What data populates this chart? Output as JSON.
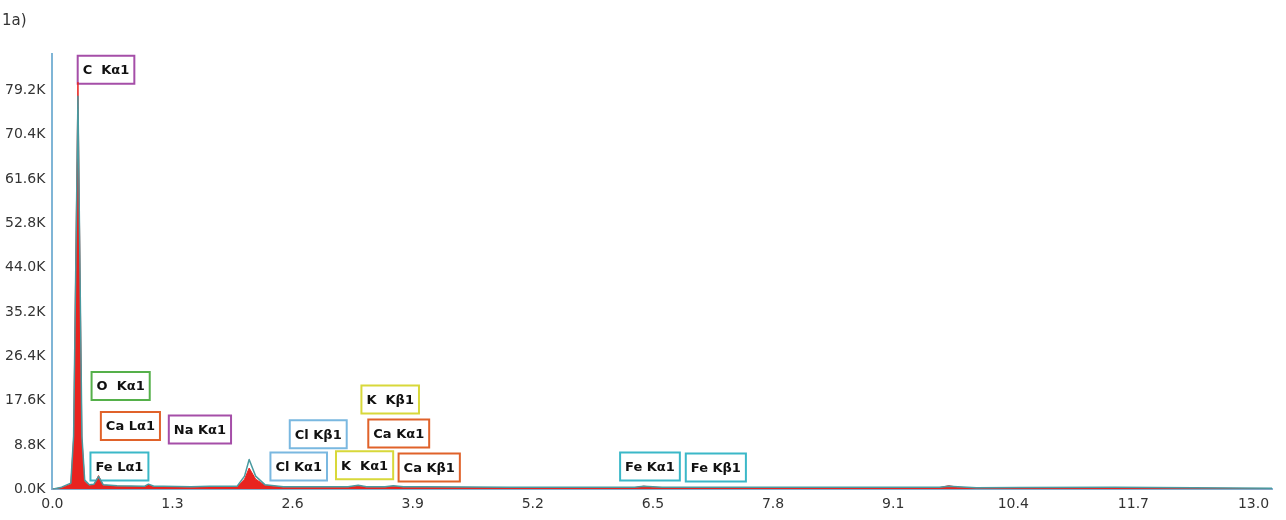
{
  "chart_data": {
    "type": "area",
    "title": "1a)",
    "xlim": [
      0,
      13.2
    ],
    "ylim": [
      0,
      86400
    ],
    "xticks": [
      {
        "value": 0,
        "label": "0.0"
      },
      1.3,
      2.6,
      3.9,
      5.2,
      6.5,
      7.8,
      9.1,
      10.4,
      11.7,
      {
        "value": 13,
        "label": "13.0"
      }
    ],
    "yticks": [
      {
        "value": 0,
        "label": "0.0K"
      },
      {
        "value": 8800,
        "label": "8.8K"
      },
      {
        "value": 17600,
        "label": "17.6K"
      },
      {
        "value": 26400,
        "label": "26.4K"
      },
      {
        "value": 35200,
        "label": "35.2K"
      },
      {
        "value": 44000,
        "label": "44.0K"
      },
      {
        "value": 52800,
        "label": "52.8K"
      },
      {
        "value": 61600,
        "label": "61.6K"
      },
      {
        "value": 70400,
        "label": "70.4K"
      },
      {
        "value": 79200,
        "label": "79.2K"
      }
    ],
    "grid": false,
    "legend": false,
    "series": [
      {
        "color": "#e8231f",
        "x": [
          0,
          0.1,
          0.2,
          0.23,
          0.277,
          0.32,
          0.35,
          0.4,
          0.45,
          0.5,
          0.55,
          0.7,
          1.0,
          1.04,
          1.1,
          1.2,
          1.5,
          1.7,
          2.0,
          2.08,
          2.13,
          2.2,
          2.3,
          2.5,
          3.2,
          3.31,
          3.4,
          3.6,
          3.69,
          3.8,
          4.0,
          5.0,
          6.3,
          6.4,
          6.5,
          6.6,
          9.6,
          9.7,
          9.8,
          10.0,
          11.5,
          13.2
        ],
        "values": [
          0,
          300,
          1000,
          10000,
          80800,
          10000,
          1500,
          800,
          900,
          2700,
          800,
          600,
          500,
          900,
          500,
          500,
          400,
          500,
          500,
          2000,
          4200,
          2000,
          800,
          400,
          400,
          700,
          400,
          400,
          600,
          400,
          400,
          300,
          300,
          600,
          400,
          300,
          300,
          700,
          400,
          200,
          300,
          100
        ]
      },
      {
        "type": "line",
        "color": "#4a9aa0",
        "x": [
          0,
          0.1,
          0.2,
          0.23,
          0.277,
          0.32,
          0.35,
          0.4,
          0.45,
          0.5,
          0.55,
          0.7,
          1.0,
          1.04,
          1.1,
          1.2,
          1.5,
          1.7,
          2.0,
          2.08,
          2.13,
          2.2,
          2.3,
          2.5,
          3.2,
          3.31,
          3.4,
          3.6,
          3.69,
          3.8,
          4.0,
          5.0,
          6.3,
          6.4,
          6.5,
          6.6,
          9.6,
          9.7,
          9.8,
          10.0,
          11.5,
          13.2
        ],
        "values": [
          0,
          400,
          1200,
          10500,
          78000,
          10500,
          1800,
          900,
          1000,
          2500,
          900,
          700,
          600,
          1000,
          600,
          600,
          500,
          600,
          600,
          2600,
          5900,
          2600,
          900,
          500,
          500,
          800,
          500,
          500,
          700,
          500,
          500,
          400,
          400,
          600,
          500,
          400,
          400,
          600,
          500,
          300,
          400,
          200
        ]
      }
    ],
    "annotations": [
      "C  Kα1",
      "O  Kα1",
      "Ca Lα1",
      "Na Kα1",
      "Fe Lα1",
      "Cl Kβ1",
      "Cl Kα1",
      "K  Kβ1",
      "Ca Kα1",
      "K  Kα1",
      "Ca Kβ1",
      "Fe Kα1",
      "Fe Kβ1"
    ]
  }
}
